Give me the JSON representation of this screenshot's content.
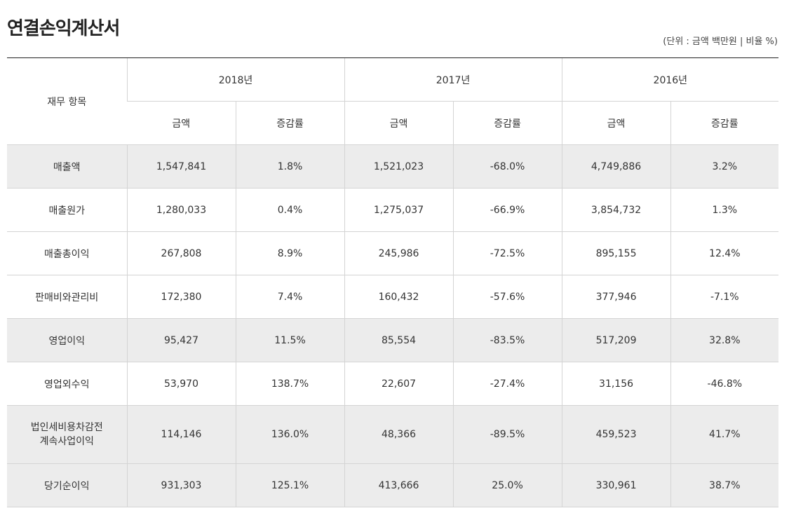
{
  "header": {
    "title": "연결손익계산서",
    "unit": "(단위 : 금액 백만원 | 비율 %)"
  },
  "table": {
    "item_header": "재무 항목",
    "years": [
      "2018년",
      "2017년",
      "2016년"
    ],
    "subheaders": [
      "금액",
      "증감률",
      "금액",
      "증감률",
      "금액",
      "증감률"
    ],
    "rows": [
      {
        "label": "매출액",
        "cells": [
          "1,547,841",
          "1.8%",
          "1,521,023",
          "-68.0%",
          "4,749,886",
          "3.2%"
        ]
      },
      {
        "label": "매출원가",
        "cells": [
          "1,280,033",
          "0.4%",
          "1,275,037",
          "-66.9%",
          "3,854,732",
          "1.3%"
        ]
      },
      {
        "label": "매출총이익",
        "cells": [
          "267,808",
          "8.9%",
          "245,986",
          "-72.5%",
          "895,155",
          "12.4%"
        ]
      },
      {
        "label": "판매비와관리비",
        "cells": [
          "172,380",
          "7.4%",
          "160,432",
          "-57.6%",
          "377,946",
          "-7.1%"
        ]
      },
      {
        "label": "영업이익",
        "cells": [
          "95,427",
          "11.5%",
          "85,554",
          "-83.5%",
          "517,209",
          "32.8%"
        ]
      },
      {
        "label": "영업외수익",
        "cells": [
          "53,970",
          "138.7%",
          "22,607",
          "-27.4%",
          "31,156",
          "-46.8%"
        ]
      },
      {
        "label_line1": "법인세비용차감전",
        "label_line2": "계속사업이익",
        "cells": [
          "114,146",
          "136.0%",
          "48,366",
          "-89.5%",
          "459,523",
          "41.7%"
        ]
      },
      {
        "label": "당기순이익",
        "cells": [
          "931,303",
          "125.1%",
          "413,666",
          "25.0%",
          "330,961",
          "38.7%"
        ]
      }
    ]
  }
}
